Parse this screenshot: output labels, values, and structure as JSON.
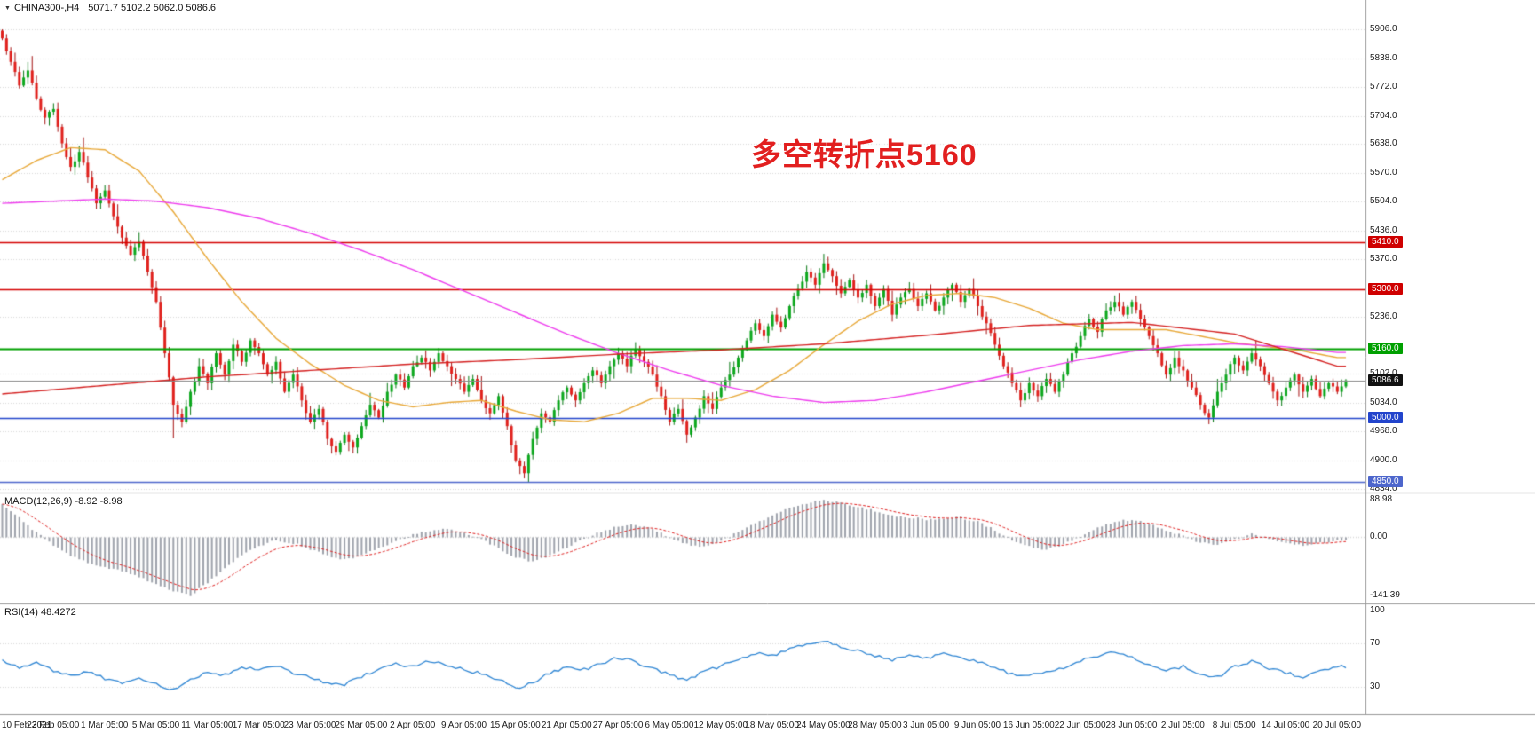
{
  "title_bar": {
    "collapse_icon": "▼",
    "symbol_period": "CHINA300-,H4",
    "ohlc_values": "5071.7 5102.2 5062.0 5086.6"
  },
  "annotation": {
    "text": "多空转折点5160",
    "color": "#e21f1f"
  },
  "indicators": {
    "macd_label": "MACD(12,26,9) -8.92 -8.98",
    "rsi_label": "RSI(14) 48.4272"
  },
  "colors": {
    "background": "#ffffff",
    "up_candle": "#0ca81d",
    "up_border": "#067812",
    "down_candle": "#e0201c",
    "down_border": "#a51111",
    "ma_medium": "#e8a838",
    "ma_long": "#ee3cee",
    "ma_slow": "#d42020",
    "macd_hist": "#9fa3ac",
    "macd_signal": "#e02020",
    "rsi_line": "#2f86d4",
    "grid": "#d9d9d9",
    "separator": "#989898",
    "axis_text": "#1a1a1a",
    "level_red": "#d40000",
    "level_green": "#00a000",
    "level_blue": "#2244cc",
    "level_blue2": "#4d66cc",
    "current_price_line": "#888888"
  },
  "chart_data": {
    "type": "candlestick+indicators",
    "x_axis_labels": [
      "10 Feb 2021",
      "23 Feb 05:00",
      "1 Mar 05:00",
      "5 Mar 05:00",
      "11 Mar 05:00",
      "17 Mar 05:00",
      "23 Mar 05:00",
      "29 Mar 05:00",
      "2 Apr 05:00",
      "9 Apr 05:00",
      "15 Apr 05:00",
      "21 Apr 05:00",
      "27 Apr 05:00",
      "6 May 05:00",
      "12 May 05:00",
      "18 May 05:00",
      "24 May 05:00",
      "28 May 05:00",
      "3 Jun 05:00",
      "9 Jun 05:00",
      "16 Jun 05:00",
      "22 Jun 05:00",
      "28 Jun 05:00",
      "2 Jul 05:00",
      "8 Jul 05:00",
      "14 Jul 05:00",
      "20 Jul 05:00"
    ],
    "main": {
      "price_range": [
        4825,
        5958
      ],
      "price_ticks": [
        5906.0,
        5838.0,
        5772.0,
        5704.0,
        5638.0,
        5570.0,
        5504.0,
        5436.0,
        5370.0,
        5236.0,
        5102.0,
        5034.0,
        4968.0,
        4900.0,
        4834.0
      ],
      "current_price": 5086.6,
      "levels": [
        {
          "price": 5410.0,
          "label": "5410.0",
          "type": "resistance",
          "color_key": "level_red",
          "badge": "#cf0000",
          "width": 1.6
        },
        {
          "price": 5300.0,
          "label": "5300.0",
          "type": "resistance",
          "color_key": "level_red",
          "badge": "#cf0000",
          "width": 1.6
        },
        {
          "price": 5160.0,
          "label": "5160.0",
          "type": "pivot",
          "color_key": "level_green",
          "badge": "#00a000",
          "width": 2
        },
        {
          "price": 5086.6,
          "label": "5086.6",
          "type": "current",
          "color_key": "current_price_line",
          "badge": "#111111",
          "width": 1
        },
        {
          "price": 5000.0,
          "label": "5000.0",
          "type": "support",
          "color_key": "level_blue",
          "badge": "#2244cc",
          "width": 1.6
        },
        {
          "price": 4850.0,
          "label": "4850.0",
          "type": "support",
          "color_key": "level_blue2",
          "badge": "#4d66cc",
          "width": 1.6
        }
      ],
      "closes_even": [
        5885,
        5830,
        5775,
        5810,
        5745,
        5700,
        5720,
        5640,
        5585,
        5620,
        5560,
        5500,
        5530,
        5470,
        5420,
        5380,
        5410,
        5340,
        5270,
        5150,
        5030,
        4990,
        5060,
        5120,
        5080,
        5150,
        5100,
        5170,
        5130,
        5180,
        5150,
        5100,
        5130,
        5060,
        5100,
        5040,
        4990,
        5020,
        4950,
        4920,
        4960,
        4930,
        4980,
        5030,
        5000,
        5060,
        5100,
        5070,
        5120,
        5140,
        5110,
        5150,
        5120,
        5090,
        5060,
        5090,
        5040,
        5010,
        5050,
        4980,
        4900,
        4870,
        4950,
        5010,
        4990,
        5040,
        5070,
        5040,
        5080,
        5110,
        5080,
        5120,
        5150,
        5120,
        5160,
        5130,
        5100,
        5050,
        4990,
        5020,
        4960,
        5000,
        5050,
        5020,
        5070,
        5100,
        5140,
        5180,
        5220,
        5190,
        5240,
        5210,
        5260,
        5300,
        5340,
        5310,
        5360,
        5330,
        5290,
        5320,
        5280,
        5310,
        5260,
        5300,
        5240,
        5280,
        5300,
        5260,
        5290,
        5250,
        5280,
        5310,
        5270,
        5300,
        5260,
        5220,
        5170,
        5120,
        5080,
        5040,
        5080,
        5050,
        5090,
        5060,
        5100,
        5150,
        5190,
        5230,
        5200,
        5250,
        5270,
        5240,
        5270,
        5230,
        5190,
        5150,
        5100,
        5140,
        5110,
        5070,
        5030,
        5000,
        5060,
        5100,
        5140,
        5110,
        5150,
        5120,
        5080,
        5040,
        5070,
        5100,
        5060,
        5090,
        5050,
        5080,
        5060,
        5086.6
      ],
      "wick_overrides": [
        {
          "i": 0,
          "high": 5906
        },
        {
          "i": 1,
          "high": 5895
        },
        {
          "i": 40,
          "low": 4952
        },
        {
          "i": 121,
          "low": 4868
        },
        {
          "i": 122,
          "low": 4858
        },
        {
          "i": 192,
          "high": 5382
        },
        {
          "i": 193,
          "high": 5375
        }
      ],
      "moving_averages": [
        {
          "name": "ma-medium-orange",
          "color_key": "ma_medium",
          "step": 8,
          "values": [
            5555,
            5600,
            5630,
            5625,
            5575,
            5480,
            5370,
            5270,
            5185,
            5125,
            5075,
            5040,
            5025,
            5035,
            5040,
            5015,
            4995,
            4990,
            5010,
            5045,
            5045,
            5040,
            5065,
            5110,
            5170,
            5225,
            5265,
            5285,
            5290,
            5280,
            5255,
            5220,
            5205,
            5205,
            5205,
            5190,
            5175,
            5165,
            5155,
            5140
          ]
        },
        {
          "name": "ma-long-magenta",
          "color_key": "ma_long",
          "step": 12,
          "values": [
            5500,
            5505,
            5510,
            5505,
            5490,
            5465,
            5430,
            5390,
            5345,
            5295,
            5245,
            5195,
            5150,
            5110,
            5075,
            5050,
            5035,
            5040,
            5060,
            5085,
            5110,
            5135,
            5155,
            5168,
            5172,
            5165,
            5152
          ]
        },
        {
          "name": "ma-slow-red",
          "color_key": "ma_slow",
          "step": 24,
          "values": [
            5055,
            5075,
            5095,
            5110,
            5125,
            5135,
            5148,
            5158,
            5172,
            5192,
            5215,
            5222,
            5195,
            5120
          ]
        }
      ]
    },
    "macd": {
      "params": "12,26,9",
      "last_values": [
        -8.92,
        -8.98
      ],
      "range": [
        -160,
        100
      ],
      "axis_ticks": [
        {
          "value": 88.98,
          "label": "88.98"
        },
        {
          "value": 0,
          "label": "0.00"
        },
        {
          "value": -141.39,
          "label": "-141.39"
        }
      ],
      "values": [
        80,
        45,
        10,
        -20,
        -45,
        -62,
        -72,
        -82,
        -95,
        -115,
        -130,
        -141.39,
        -110,
        -75,
        -45,
        -22,
        -8,
        -15,
        -30,
        -45,
        -55,
        -45,
        -28,
        -10,
        5,
        15,
        20,
        10,
        -5,
        -28,
        -50,
        -60,
        -45,
        -25,
        -5,
        12,
        25,
        30,
        18,
        -2,
        -18,
        -24,
        -10,
        12,
        32,
        52,
        68,
        80,
        88.98,
        82,
        72,
        62,
        52,
        46,
        42,
        44,
        46,
        36,
        16,
        -8,
        -24,
        -30,
        -18,
        2,
        22,
        36,
        42,
        32,
        16,
        2,
        -14,
        -20,
        -6,
        6,
        -4,
        -14,
        -20,
        -14,
        -8.92
      ]
    },
    "rsi": {
      "period": 14,
      "last_value": 48.4272,
      "range": [
        5,
        105
      ],
      "levels_dotted": [
        70,
        30
      ],
      "axis_ticks": [
        {
          "value": 100,
          "label": "100"
        },
        {
          "value": 70,
          "label": "70"
        },
        {
          "value": 30,
          "label": "30"
        }
      ],
      "values": [
        55,
        48,
        52,
        45,
        40,
        44,
        38,
        34,
        37,
        32,
        27,
        36,
        44,
        41,
        49,
        45,
        50,
        43,
        39,
        34,
        32,
        40,
        46,
        51,
        49,
        54,
        50,
        46,
        42,
        37,
        29,
        34,
        43,
        49,
        46,
        52,
        57,
        53,
        47,
        41,
        37,
        44,
        49,
        55,
        61,
        59,
        65,
        69,
        72,
        67,
        63,
        59,
        55,
        59,
        56,
        61,
        57,
        53,
        47,
        42,
        40,
        45,
        48,
        54,
        59,
        62,
        57,
        51,
        45,
        49,
        41,
        39,
        49,
        54,
        47,
        43,
        39,
        44,
        48.43
      ]
    }
  }
}
